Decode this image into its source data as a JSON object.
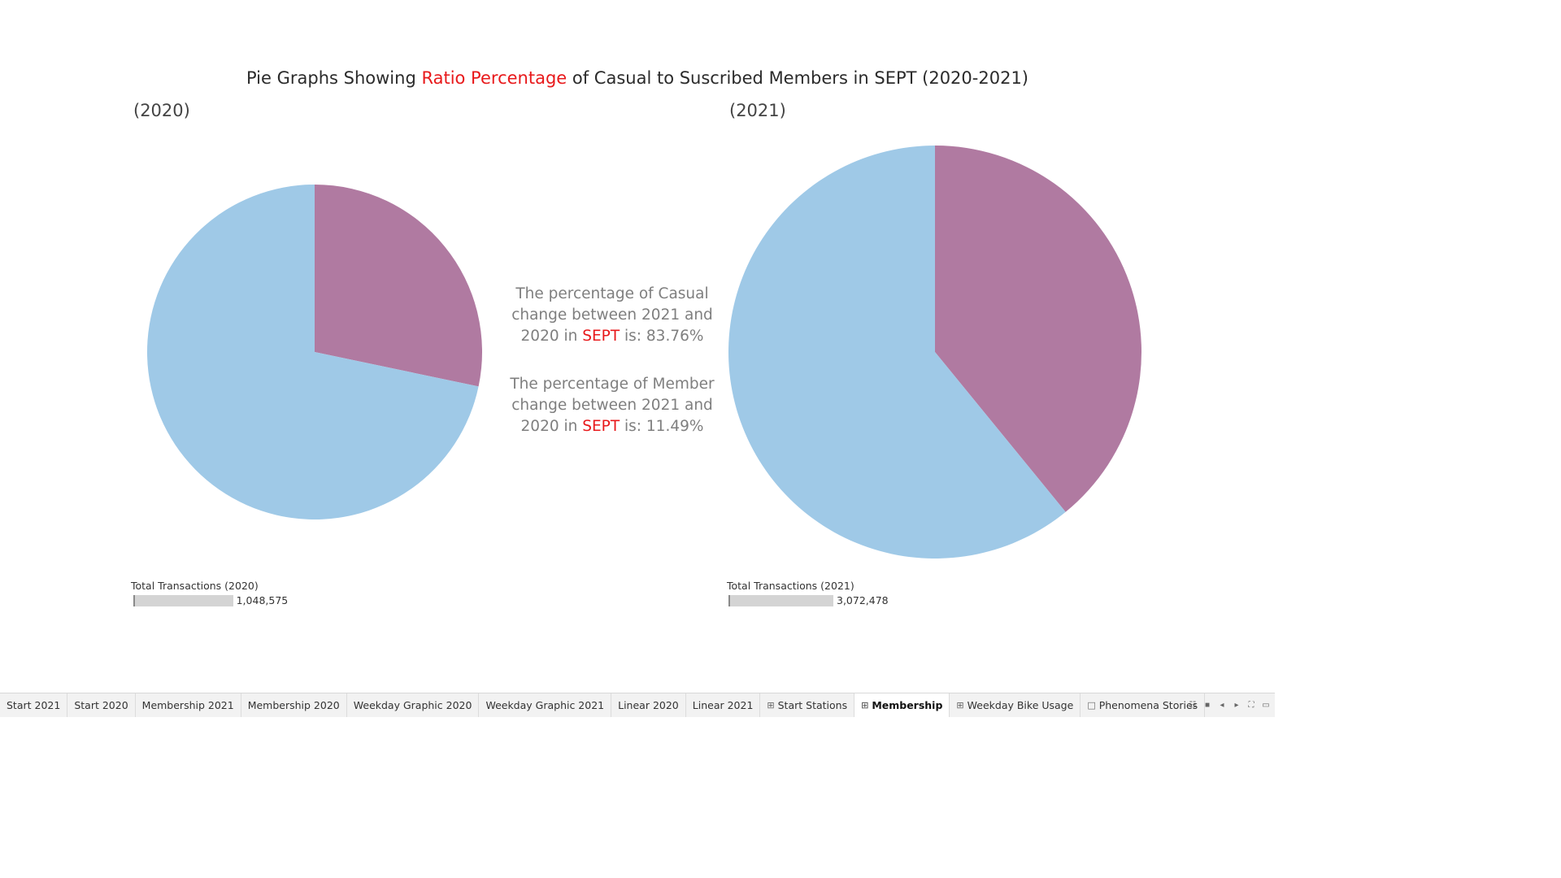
{
  "title": {
    "before": "Pie Graphs Showing ",
    "accent": "Ratio Percentage",
    "after": " of Casual to Suscribed Members in SEPT (2020-2021)"
  },
  "colors": {
    "accent": "#e8191b",
    "member": "#9fc9e7",
    "casual": "#b07aa1"
  },
  "chart_data": [
    {
      "type": "pie",
      "label": "(2020)",
      "slices": [
        {
          "value": 0.283,
          "color": "#b07aa1"
        },
        {
          "value": 0.717,
          "color": "#9fc9e7"
        }
      ],
      "total_label": "Total Transactions (2020)",
      "total_value": 1048575,
      "total_text": "1,048,575"
    },
    {
      "type": "pie",
      "label": "(2021)",
      "slices": [
        {
          "value": 0.391,
          "color": "#b07aa1"
        },
        {
          "value": 0.609,
          "color": "#9fc9e7"
        }
      ],
      "total_label": "Total Transactions (2021)",
      "total_value": 3072478,
      "total_text": "3,072,478"
    }
  ],
  "center": {
    "casual": {
      "line1": "The percentage of Casual",
      "line2": "change between 2021 and",
      "pre": "2020 in ",
      "month": "SEPT",
      "post": " is: 83.76%"
    },
    "member": {
      "line1": "The percentage of Member",
      "line2": "change between 2021 and",
      "pre": "2020 in ",
      "month": "SEPT",
      "post": " is: 11.49%"
    }
  },
  "tabs": [
    {
      "label": "Start 2021",
      "icon": ""
    },
    {
      "label": "Start 2020",
      "icon": ""
    },
    {
      "label": "Membership 2021",
      "icon": ""
    },
    {
      "label": "Membership 2020",
      "icon": ""
    },
    {
      "label": "Weekday Graphic 2020",
      "icon": ""
    },
    {
      "label": "Weekday Graphic 2021",
      "icon": ""
    },
    {
      "label": "Linear 2020",
      "icon": ""
    },
    {
      "label": "Linear 2021",
      "icon": ""
    },
    {
      "label": "Start Stations",
      "icon": "dashboard-icon"
    },
    {
      "label": "Membership",
      "icon": "dashboard-icon",
      "active": true
    },
    {
      "label": "Weekday Bike Usage",
      "icon": "dashboard-icon"
    },
    {
      "label": "Phenomena Stories",
      "icon": "story-icon"
    }
  ],
  "controls": [
    "sheet-sorter-icon",
    "filmstrip-icon",
    "previous-icon",
    "next-icon",
    "fullscreen-icon",
    "presentation-icon"
  ]
}
